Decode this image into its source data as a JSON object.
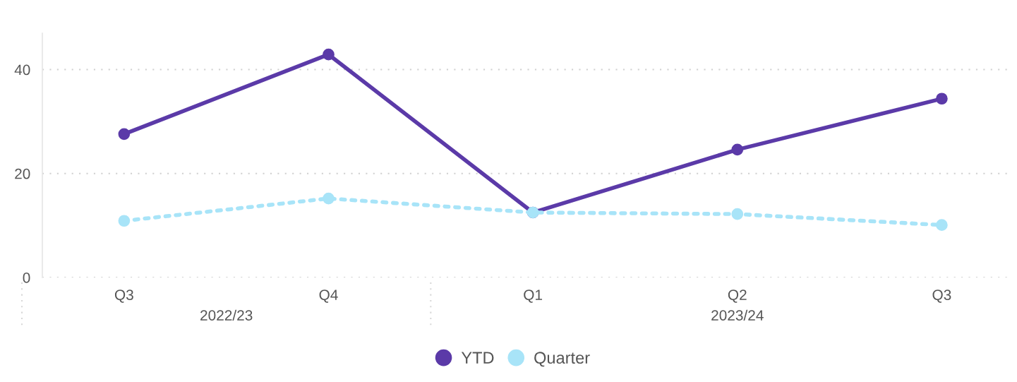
{
  "chart_data": {
    "type": "line",
    "categories": [
      "Q3",
      "Q4",
      "Q1",
      "Q2",
      "Q3"
    ],
    "series": [
      {
        "name": "YTD",
        "color": "#5b3aa8",
        "values": [
          27.6,
          42.9,
          12.5,
          24.6,
          34.4
        ],
        "line_style": "solid"
      },
      {
        "name": "Quarter",
        "color": "#a8e4f8",
        "values": [
          10.9,
          15.2,
          12.5,
          12.2,
          10.1
        ],
        "line_style": "dotted"
      }
    ],
    "ylim": [
      0,
      47
    ],
    "yticks": [
      0,
      20,
      40
    ],
    "grid": "y",
    "legend": "bottom",
    "marker": "circle",
    "annotations": [
      "2022/23",
      "2023/24"
    ]
  }
}
